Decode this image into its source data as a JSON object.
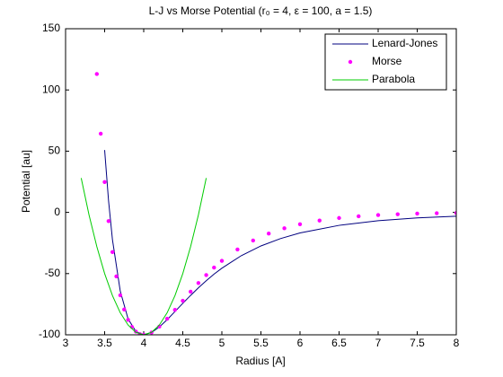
{
  "chart_data": {
    "type": "line",
    "title": "L-J vs Morse Potential (r₀ = 4, ε = 100, a = 1.5)",
    "x_label": "Radius [A]",
    "y_label": "Potential [au]",
    "xlim": [
      3,
      8
    ],
    "xticks": [
      3,
      3.5,
      4,
      4.5,
      5,
      5.5,
      6,
      6.5,
      7,
      7.5,
      8
    ],
    "ylim": [
      -100,
      150
    ],
    "yticks": [
      -100,
      -50,
      0,
      50,
      100,
      150
    ],
    "legend": "northeast",
    "series": [
      {
        "name": "Lenard-Jones",
        "color": "#00007f",
        "style": "line",
        "x": [
          3.5,
          3.55,
          3.6,
          3.7,
          3.8,
          3.9,
          4.0,
          4.1,
          4.2,
          4.3,
          4.4,
          4.5,
          4.6,
          4.7,
          4.8,
          4.9,
          5.0,
          5.25,
          5.5,
          5.75,
          6,
          6.5,
          7,
          7.5,
          8
        ],
        "values": [
          50.9,
          9.5,
          -22.3,
          -64.4,
          -87.0,
          -97.3,
          -100,
          -98.1,
          -93.6,
          -87.6,
          -81.0,
          -74.3,
          -67.8,
          -61.6,
          -55.8,
          -50.4,
          -45.6,
          -35.3,
          -27.4,
          -21.4,
          -16.8,
          -10.6,
          -6.8,
          -4.5,
          -3.1
        ]
      },
      {
        "name": "Morse",
        "color": "#ff00ff",
        "style": "markers",
        "x": [
          3.4,
          3.45,
          3.5,
          3.55,
          3.6,
          3.65,
          3.7,
          3.75,
          3.8,
          3.85,
          3.9,
          3.95,
          4.0,
          4.1,
          4.2,
          4.3,
          4.4,
          4.5,
          4.6,
          4.7,
          4.8,
          4.9,
          5.0,
          5.2,
          5.4,
          5.6,
          5.8,
          6.0,
          6.25,
          6.5,
          6.75,
          7.0,
          7.25,
          7.5,
          7.75,
          8.0
        ],
        "values": [
          113.0,
          64.3,
          24.8,
          -7.1,
          -32.4,
          -52.3,
          -67.7,
          -79.3,
          -87.8,
          -93.6,
          -97.4,
          -99.4,
          -100,
          -98.1,
          -93.3,
          -86.9,
          -79.6,
          -72.2,
          -64.8,
          -57.7,
          -51.2,
          -45.1,
          -39.6,
          -30.3,
          -23.0,
          -17.3,
          -13.0,
          -9.7,
          -6.7,
          -4.6,
          -3.2,
          -2.2,
          -1.5,
          -1.0,
          -0.7,
          -0.5
        ]
      },
      {
        "name": "Parabola",
        "color": "#00cc00",
        "style": "line",
        "x": [
          3.2,
          3.3,
          3.4,
          3.5,
          3.6,
          3.7,
          3.8,
          3.9,
          4.0,
          4.1,
          4.2,
          4.3,
          4.4,
          4.5,
          4.6,
          4.7,
          4.8
        ],
        "values": [
          28,
          -2,
          -28,
          -50,
          -68,
          -82,
          -92,
          -98,
          -100,
          -98,
          -92,
          -82,
          -68,
          -50,
          -28,
          -2,
          28
        ]
      }
    ]
  }
}
